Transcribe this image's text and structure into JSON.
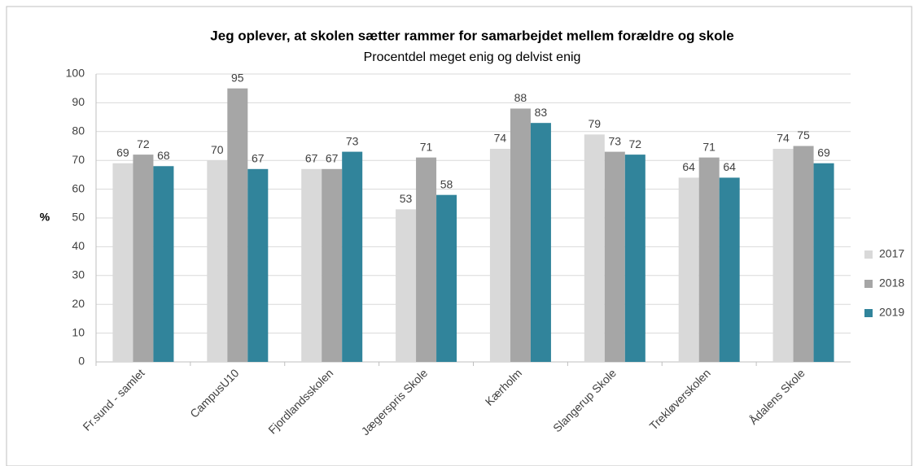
{
  "chart_data": {
    "type": "bar",
    "title": "Jeg oplever, at skolen sætter rammer for samarbejdet mellem forældre og skole",
    "subtitle": "Procentdel meget enig og delvist enig",
    "y_label": "%",
    "categories": [
      "Fr.sund - samlet",
      "CampusU10",
      "Fjordlandsskolen",
      "Jægerspris Skole",
      "Kærholm",
      "Slangerup Skole",
      "Trekløverskolen",
      "Ådalens Skole"
    ],
    "series": [
      {
        "name": "2017",
        "color": "#d9d9d9",
        "values": [
          69,
          70,
          67,
          53,
          74,
          79,
          64,
          74
        ]
      },
      {
        "name": "2018",
        "color": "#a6a6a6",
        "values": [
          72,
          95,
          67,
          71,
          88,
          73,
          71,
          75
        ]
      },
      {
        "name": "2019",
        "color": "#31849b",
        "values": [
          68,
          67,
          73,
          58,
          83,
          72,
          64,
          69
        ]
      }
    ],
    "ylim": [
      0,
      100
    ],
    "yticks": [
      0,
      10,
      20,
      30,
      40,
      50,
      60,
      70,
      80,
      90,
      100
    ],
    "grid": true,
    "legend": "right"
  }
}
